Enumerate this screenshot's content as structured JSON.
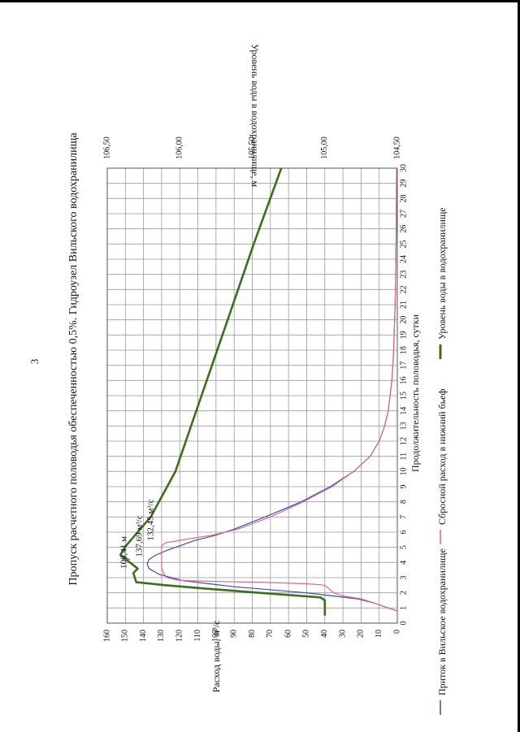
{
  "page": {
    "number": "3"
  },
  "chart_data": {
    "type": "line",
    "title": "Пропуск расчетного половодья обеспеченностью 0,5%. Гидроузел Вильского водохранилища",
    "xlabel": "Продолжительность половодья, сутки",
    "ylabel": "Расход воды, м³/с",
    "y2label": "Уровень воды в водохранилище, м",
    "xlim": [
      0,
      30
    ],
    "ylim": [
      0,
      160
    ],
    "y2lim": [
      104.5,
      106.5
    ],
    "x_ticks": [
      "0",
      "1",
      "2",
      "3",
      "4",
      "5",
      "6",
      "7",
      "8",
      "9",
      "10",
      "11",
      "12",
      "13",
      "14",
      "15",
      "16",
      "17",
      "18",
      "19",
      "20",
      "21",
      "22",
      "23",
      "24",
      "25",
      "26",
      "27",
      "28",
      "29",
      "30"
    ],
    "y_ticks": [
      "0",
      "10",
      "20",
      "30",
      "40",
      "50",
      "60",
      "70",
      "80",
      "90",
      "100",
      "110",
      "120",
      "130",
      "140",
      "150",
      "160"
    ],
    "y2_ticks": [
      "104,50",
      "105,00",
      "105,50",
      "106,00",
      "106,50"
    ],
    "grid": true,
    "legend_position": "bottom",
    "series": [
      {
        "name": "Приток в Вильское водохранилище",
        "color": "#3b4fa8",
        "axis": "left",
        "x": [
          0.8,
          1.0,
          1.3,
          1.6,
          2.0,
          2.4,
          2.8,
          3.2,
          3.6,
          3.9,
          4.2,
          4.5,
          4.8,
          5.1,
          5.4,
          5.5,
          5.8,
          6.2,
          7.0,
          8.0,
          9.0,
          10.0,
          11.0,
          12.0,
          13.0,
          14.0,
          15.0,
          16.0,
          18.0,
          20.0,
          22.0,
          24.0,
          26.0,
          28.0,
          30.0
        ],
        "y": [
          0,
          5,
          12,
          22,
          50,
          90,
          118,
          131,
          137,
          138,
          137,
          133,
          127,
          120,
          113,
          110,
          100,
          90,
          73,
          53,
          37,
          24,
          15,
          10,
          7,
          5,
          4,
          3,
          2,
          1.5,
          1,
          0.8,
          0.6,
          0.5,
          0.4
        ]
      },
      {
        "name": "Сбросной расход в нижний бьеф",
        "color": "#d86a8a",
        "axis": "left",
        "x": [
          0.8,
          1.0,
          1.3,
          1.6,
          1.8,
          2.0,
          2.3,
          2.5,
          2.6,
          2.7,
          2.75,
          2.8,
          2.85,
          3.0,
          3.3,
          3.7,
          4.0,
          4.3,
          4.6,
          4.9,
          5.1,
          5.3,
          5.5,
          5.6,
          5.8,
          6.2,
          7.0,
          8.0,
          9.0,
          10.0,
          11.0,
          12.0,
          13.0,
          14.0,
          15.0,
          16.0,
          18.0,
          20.0,
          22.0,
          24.0,
          26.0,
          28.0,
          30.0
        ],
        "y": [
          0,
          5,
          12,
          20,
          30,
          35,
          38,
          40,
          50,
          75,
          100,
          115,
          122,
          127,
          129,
          130,
          130,
          130,
          130,
          130,
          130,
          128,
          118,
          113,
          102,
          88,
          70,
          52,
          36,
          24,
          15,
          10,
          7,
          5,
          4,
          3,
          2,
          1.5,
          1,
          0.8,
          0.6,
          0.5,
          0.4
        ]
      },
      {
        "name": "Уровень воды в водохранилище",
        "color": "#3c6e1e",
        "axis": "right",
        "x": [
          0.5,
          0.8,
          1.0,
          1.3,
          1.5,
          1.7,
          2.0,
          2.3,
          2.5,
          2.7,
          3.0,
          3.3,
          3.6,
          3.9,
          4.2,
          4.5,
          4.8,
          5.0,
          7.0,
          10.0,
          15.0,
          20.0,
          25.0,
          30.0
        ],
        "y": [
          105.0,
          105.0,
          105.0,
          105.0,
          105.0,
          105.03,
          105.45,
          105.85,
          106.1,
          106.3,
          106.31,
          106.32,
          106.29,
          106.33,
          106.37,
          106.41,
          106.39,
          106.38,
          106.2,
          106.03,
          105.85,
          105.67,
          105.49,
          105.3
        ]
      }
    ],
    "annotations": [
      "106,41 м",
      "137,69 м³/с",
      "132,45 м³/с"
    ]
  }
}
